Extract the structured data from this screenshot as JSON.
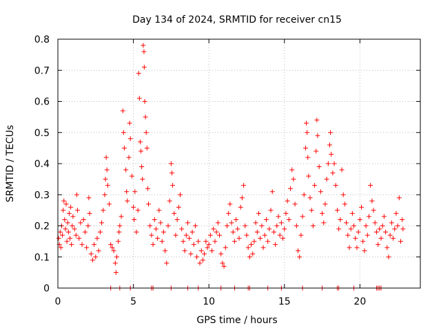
{
  "chart_data": {
    "type": "scatter",
    "title": "Day 134 of 2024, SRMTID for receiver cn15",
    "xlabel": "GPS time / hours",
    "ylabel": "SRMTID / TECUs",
    "xlim": [
      0,
      24
    ],
    "ylim": [
      0,
      0.8
    ],
    "x_ticks": [
      0,
      5,
      10,
      15,
      20
    ],
    "x_tick_labels": [
      "0",
      "5",
      "10",
      "15",
      "20"
    ],
    "y_ticks": [
      0,
      0.1,
      0.2,
      0.3,
      0.4,
      0.5,
      0.6,
      0.7,
      0.8
    ],
    "y_tick_labels": [
      "0",
      "0.1",
      "0.2",
      "0.3",
      "0.4",
      "0.5",
      "0.6",
      "0.7",
      "0.8"
    ],
    "grid": true,
    "marker": "plus",
    "color": "#ff0000",
    "series": [
      {
        "name": "SRMTID",
        "points": [
          [
            0.05,
            0.16
          ],
          [
            0.1,
            0.14
          ],
          [
            0.15,
            0.18
          ],
          [
            0.2,
            0.13
          ],
          [
            0.25,
            0.2
          ],
          [
            0.3,
            0.17
          ],
          [
            0.35,
            0.25
          ],
          [
            0.4,
            0.28
          ],
          [
            0.45,
            0.22
          ],
          [
            0.5,
            0.19
          ],
          [
            0.55,
            0.27
          ],
          [
            0.6,
            0.15
          ],
          [
            0.65,
            0.21
          ],
          [
            0.7,
            0.18
          ],
          [
            0.75,
            0.24
          ],
          [
            0.8,
            0.16
          ],
          [
            0.85,
            0.26
          ],
          [
            0.9,
            0.14
          ],
          [
            0.95,
            0.2
          ],
          [
            1.0,
            0.23
          ],
          [
            1.1,
            0.19
          ],
          [
            1.2,
            0.17
          ],
          [
            1.25,
            0.3
          ],
          [
            1.3,
            0.25
          ],
          [
            1.4,
            0.16
          ],
          [
            1.5,
            0.21
          ],
          [
            1.6,
            0.14
          ],
          [
            1.7,
            0.22
          ],
          [
            1.8,
            0.18
          ],
          [
            1.9,
            0.13
          ],
          [
            2.0,
            0.2
          ],
          [
            2.05,
            0.29
          ],
          [
            2.1,
            0.24
          ],
          [
            2.2,
            0.11
          ],
          [
            2.3,
            0.09
          ],
          [
            2.4,
            0.14
          ],
          [
            2.5,
            0.1
          ],
          [
            2.6,
            0.16
          ],
          [
            2.7,
            0.12
          ],
          [
            2.8,
            0.18
          ],
          [
            2.9,
            0.21
          ],
          [
            3.0,
            0.25
          ],
          [
            3.1,
            0.3
          ],
          [
            3.15,
            0.35
          ],
          [
            3.2,
            0.42
          ],
          [
            3.25,
            0.38
          ],
          [
            3.3,
            0.33
          ],
          [
            3.4,
            0.27
          ],
          [
            3.5,
            0.14
          ],
          [
            3.6,
            0.13
          ],
          [
            3.7,
            0.12
          ],
          [
            3.8,
            0.08
          ],
          [
            3.85,
            0.05
          ],
          [
            3.9,
            0.1
          ],
          [
            4.0,
            0.15
          ],
          [
            4.05,
            0.18
          ],
          [
            4.1,
            0.2
          ],
          [
            4.2,
            0.23
          ],
          [
            4.3,
            0.57
          ],
          [
            4.35,
            0.5
          ],
          [
            4.4,
            0.45
          ],
          [
            4.5,
            0.38
          ],
          [
            4.55,
            0.31
          ],
          [
            4.6,
            0.28
          ],
          [
            4.7,
            0.42
          ],
          [
            4.75,
            0.53
          ],
          [
            4.8,
            0.48
          ],
          [
            4.9,
            0.36
          ],
          [
            5.0,
            0.26
          ],
          [
            5.05,
            0.22
          ],
          [
            5.1,
            0.31
          ],
          [
            5.2,
            0.18
          ],
          [
            5.3,
            0.25
          ],
          [
            5.35,
            0.69
          ],
          [
            5.4,
            0.61
          ],
          [
            5.45,
            0.47
          ],
          [
            5.5,
            0.44
          ],
          [
            5.55,
            0.39
          ],
          [
            5.6,
            0.35
          ],
          [
            5.65,
            0.78
          ],
          [
            5.7,
            0.76
          ],
          [
            5.72,
            0.71
          ],
          [
            5.75,
            0.6
          ],
          [
            5.8,
            0.55
          ],
          [
            5.85,
            0.5
          ],
          [
            5.9,
            0.45
          ],
          [
            5.95,
            0.32
          ],
          [
            6.0,
            0.27
          ],
          [
            6.1,
            0.2
          ],
          [
            6.2,
            0.17
          ],
          [
            6.3,
            0.14
          ],
          [
            6.4,
            0.22
          ],
          [
            6.5,
            0.19
          ],
          [
            6.6,
            0.16
          ],
          [
            6.7,
            0.25
          ],
          [
            6.8,
            0.21
          ],
          [
            6.9,
            0.15
          ],
          [
            7.0,
            0.18
          ],
          [
            7.1,
            0.12
          ],
          [
            7.2,
            0.08
          ],
          [
            7.3,
            0.2
          ],
          [
            7.4,
            0.28
          ],
          [
            7.5,
            0.4
          ],
          [
            7.55,
            0.37
          ],
          [
            7.6,
            0.33
          ],
          [
            7.7,
            0.24
          ],
          [
            7.8,
            0.17
          ],
          [
            7.9,
            0.22
          ],
          [
            8.0,
            0.26
          ],
          [
            8.1,
            0.3
          ],
          [
            8.2,
            0.19
          ],
          [
            8.3,
            0.15
          ],
          [
            8.4,
            0.12
          ],
          [
            8.5,
            0.17
          ],
          [
            8.6,
            0.21
          ],
          [
            8.7,
            0.16
          ],
          [
            8.8,
            0.11
          ],
          [
            8.9,
            0.18
          ],
          [
            9.0,
            0.14
          ],
          [
            9.1,
            0.2
          ],
          [
            9.2,
            0.1
          ],
          [
            9.3,
            0.15
          ],
          [
            9.4,
            0.08
          ],
          [
            9.5,
            0.12
          ],
          [
            9.6,
            0.09
          ],
          [
            9.7,
            0.11
          ],
          [
            9.8,
            0.15
          ],
          [
            9.9,
            0.13
          ],
          [
            10.0,
            0.14
          ],
          [
            10.1,
            0.17
          ],
          [
            10.2,
            0.12
          ],
          [
            10.3,
            0.19
          ],
          [
            10.4,
            0.15
          ],
          [
            10.5,
            0.18
          ],
          [
            10.6,
            0.21
          ],
          [
            10.7,
            0.17
          ],
          [
            10.8,
            0.11
          ],
          [
            10.9,
            0.08
          ],
          [
            11.0,
            0.07
          ],
          [
            11.1,
            0.13
          ],
          [
            11.2,
            0.2
          ],
          [
            11.3,
            0.24
          ],
          [
            11.4,
            0.27
          ],
          [
            11.5,
            0.21
          ],
          [
            11.6,
            0.18
          ],
          [
            11.7,
            0.15
          ],
          [
            11.8,
            0.22
          ],
          [
            11.9,
            0.19
          ],
          [
            12.0,
            0.16
          ],
          [
            12.1,
            0.26
          ],
          [
            12.2,
            0.29
          ],
          [
            12.3,
            0.33
          ],
          [
            12.4,
            0.2
          ],
          [
            12.5,
            0.17
          ],
          [
            12.6,
            0.13
          ],
          [
            12.7,
            0.1
          ],
          [
            12.8,
            0.14
          ],
          [
            12.9,
            0.11
          ],
          [
            13.0,
            0.15
          ],
          [
            13.1,
            0.21
          ],
          [
            13.2,
            0.18
          ],
          [
            13.3,
            0.24
          ],
          [
            13.4,
            0.16
          ],
          [
            13.5,
            0.2
          ],
          [
            13.6,
            0.13
          ],
          [
            13.7,
            0.17
          ],
          [
            13.8,
            0.22
          ],
          [
            13.9,
            0.15
          ],
          [
            14.0,
            0.19
          ],
          [
            14.1,
            0.25
          ],
          [
            14.2,
            0.31
          ],
          [
            14.3,
            0.18
          ],
          [
            14.4,
            0.14
          ],
          [
            14.5,
            0.2
          ],
          [
            14.6,
            0.23
          ],
          [
            14.7,
            0.17
          ],
          [
            14.8,
            0.21
          ],
          [
            14.9,
            0.16
          ],
          [
            15.0,
            0.19
          ],
          [
            15.1,
            0.24
          ],
          [
            15.2,
            0.28
          ],
          [
            15.3,
            0.22
          ],
          [
            15.4,
            0.32
          ],
          [
            15.5,
            0.38
          ],
          [
            15.6,
            0.35
          ],
          [
            15.7,
            0.27
          ],
          [
            15.8,
            0.2
          ],
          [
            15.9,
            0.12
          ],
          [
            16.0,
            0.1
          ],
          [
            16.1,
            0.17
          ],
          [
            16.2,
            0.23
          ],
          [
            16.3,
            0.3
          ],
          [
            16.4,
            0.45
          ],
          [
            16.45,
            0.53
          ],
          [
            16.5,
            0.5
          ],
          [
            16.55,
            0.42
          ],
          [
            16.6,
            0.36
          ],
          [
            16.7,
            0.29
          ],
          [
            16.8,
            0.25
          ],
          [
            16.9,
            0.2
          ],
          [
            17.0,
            0.33
          ],
          [
            17.1,
            0.44
          ],
          [
            17.15,
            0.54
          ],
          [
            17.2,
            0.49
          ],
          [
            17.3,
            0.39
          ],
          [
            17.4,
            0.31
          ],
          [
            17.5,
            0.24
          ],
          [
            17.6,
            0.21
          ],
          [
            17.7,
            0.27
          ],
          [
            17.8,
            0.35
          ],
          [
            17.9,
            0.4
          ],
          [
            18.0,
            0.46
          ],
          [
            18.05,
            0.5
          ],
          [
            18.1,
            0.43
          ],
          [
            18.2,
            0.37
          ],
          [
            18.3,
            0.4
          ],
          [
            18.4,
            0.33
          ],
          [
            18.5,
            0.25
          ],
          [
            18.6,
            0.19
          ],
          [
            18.7,
            0.22
          ],
          [
            18.8,
            0.38
          ],
          [
            18.9,
            0.3
          ],
          [
            19.0,
            0.27
          ],
          [
            19.1,
            0.21
          ],
          [
            19.2,
            0.17
          ],
          [
            19.3,
            0.13
          ],
          [
            19.4,
            0.19
          ],
          [
            19.5,
            0.24
          ],
          [
            19.6,
            0.2
          ],
          [
            19.7,
            0.16
          ],
          [
            19.8,
            0.13
          ],
          [
            19.9,
            0.18
          ],
          [
            20.0,
            0.22
          ],
          [
            20.1,
            0.26
          ],
          [
            20.2,
            0.15
          ],
          [
            20.3,
            0.12
          ],
          [
            20.4,
            0.2
          ],
          [
            20.5,
            0.17
          ],
          [
            20.6,
            0.23
          ],
          [
            20.7,
            0.33
          ],
          [
            20.8,
            0.28
          ],
          [
            20.9,
            0.25
          ],
          [
            21.0,
            0.21
          ],
          [
            21.1,
            0.18
          ],
          [
            21.2,
            0.14
          ],
          [
            21.3,
            0.19
          ],
          [
            21.4,
            0.16
          ],
          [
            21.5,
            0.2
          ],
          [
            21.6,
            0.23
          ],
          [
            21.7,
            0.18
          ],
          [
            21.8,
            0.13
          ],
          [
            21.9,
            0.1
          ],
          [
            22.0,
            0.17
          ],
          [
            22.1,
            0.21
          ],
          [
            22.2,
            0.16
          ],
          [
            22.3,
            0.19
          ],
          [
            22.4,
            0.24
          ],
          [
            22.5,
            0.2
          ],
          [
            22.6,
            0.29
          ],
          [
            22.7,
            0.15
          ],
          [
            22.8,
            0.22
          ],
          [
            22.85,
            0.19
          ],
          [
            3.5,
            0.0
          ],
          [
            4.1,
            0.0
          ],
          [
            4.8,
            0.0
          ],
          [
            6.2,
            0.0
          ],
          [
            6.3,
            0.0
          ],
          [
            7.5,
            0.0
          ],
          [
            8.6,
            0.0
          ],
          [
            9.3,
            0.0
          ],
          [
            10.8,
            0.0
          ],
          [
            11.7,
            0.0
          ],
          [
            12.6,
            0.0
          ],
          [
            12.7,
            0.0
          ],
          [
            13.9,
            0.0
          ],
          [
            14.8,
            0.0
          ],
          [
            16.2,
            0.0
          ],
          [
            17.5,
            0.0
          ],
          [
            18.5,
            0.0
          ],
          [
            18.6,
            0.0
          ],
          [
            19.6,
            0.0
          ],
          [
            21.1,
            0.0
          ],
          [
            21.2,
            0.0
          ],
          [
            21.3,
            0.0
          ],
          [
            21.4,
            0.0
          ]
        ]
      }
    ]
  }
}
